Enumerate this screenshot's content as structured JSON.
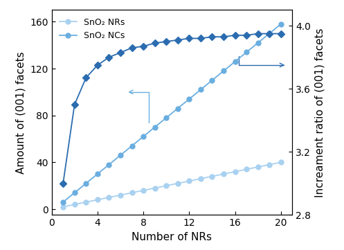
{
  "chart_data": {
    "type": "line",
    "x_label": "Number of NRs",
    "y_label": "Amount of (001) facets",
    "y2_label": "Increament ratio of (001) facets",
    "x": [
      1,
      2,
      3,
      4,
      5,
      6,
      7,
      8,
      9,
      10,
      11,
      12,
      13,
      14,
      15,
      16,
      17,
      18,
      19,
      20
    ],
    "series": [
      {
        "name": "SnO₂ NRs",
        "color": "#a9d1f0",
        "marker": "o",
        "line_style": "solid",
        "values": [
          2,
          4,
          6,
          8,
          10,
          12,
          14,
          16,
          18,
          20,
          22,
          24,
          26,
          28,
          30,
          32,
          34,
          36,
          38,
          40
        ]
      },
      {
        "name": "SnO₂ NCs",
        "color": "#6aaee0",
        "marker": "o",
        "line_style": "solid",
        "values": [
          6,
          14,
          22,
          30,
          38,
          46,
          54,
          62,
          70,
          78,
          86,
          94,
          102,
          110,
          118,
          126,
          134,
          142,
          150,
          158
        ]
      },
      {
        "axis": "y2",
        "color": "#2b6cb0",
        "marker": "D",
        "line_style": "solid",
        "values": [
          3.0,
          3.5,
          3.67,
          3.75,
          3.8,
          3.83,
          3.86,
          3.87,
          3.89,
          3.9,
          3.91,
          3.92,
          3.92,
          3.93,
          3.93,
          3.94,
          3.94,
          3.95,
          3.95,
          3.95
        ]
      }
    ],
    "xlim": [
      0,
      21
    ],
    "xticks": [
      0,
      4,
      8,
      12,
      16,
      20
    ],
    "ylim": [
      -5,
      170
    ],
    "yticks": [
      0,
      40,
      80,
      120,
      160
    ],
    "y2lim": [
      2.8,
      4.1
    ],
    "y2ticks": [
      2.8,
      3.2,
      3.6,
      4.0
    ],
    "legend": "upper left",
    "grid": false
  }
}
